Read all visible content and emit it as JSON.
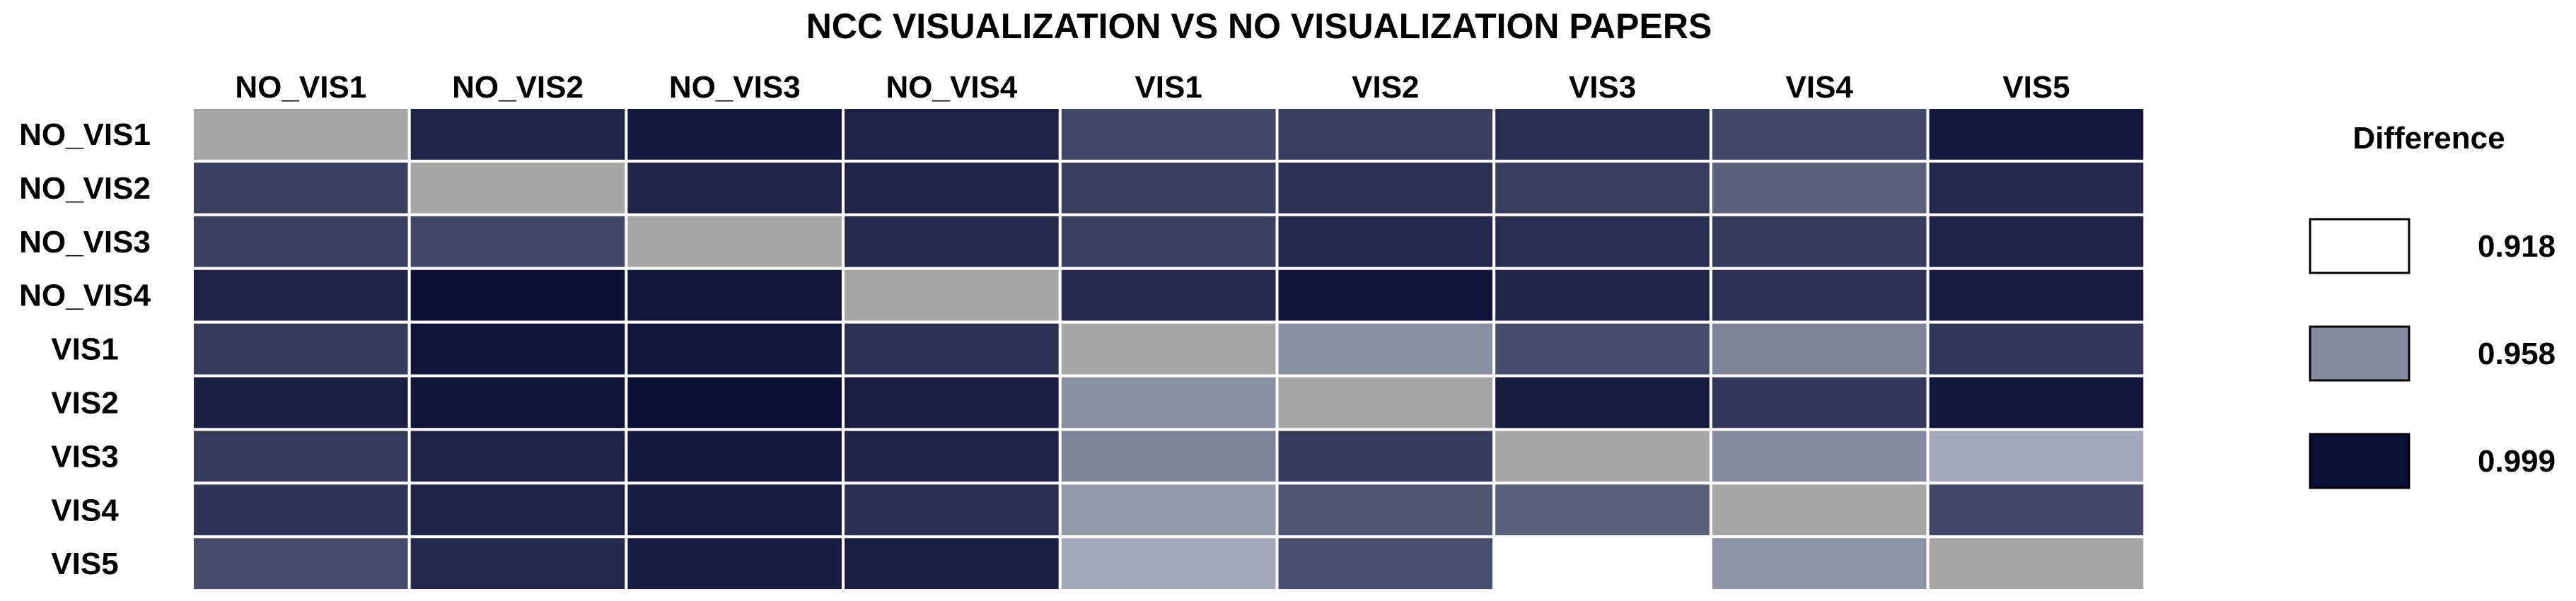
{
  "chart_data": {
    "type": "heatmap",
    "title": "NCC VISUALIZATION VS NO VISUALIZATION PAPERS",
    "columns": [
      "NO_VIS1",
      "NO_VIS2",
      "NO_VIS3",
      "NO_VIS4",
      "VIS1",
      "VIS2",
      "VIS3",
      "VIS4",
      "VIS5"
    ],
    "rows": [
      "NO_VIS1",
      "NO_VIS2",
      "NO_VIS3",
      "NO_VIS4",
      "VIS1",
      "VIS2",
      "VIS3",
      "VIS4",
      "VIS5"
    ],
    "values": [
      [
        null,
        0.992,
        0.996,
        0.993,
        0.981,
        0.984,
        0.989,
        0.981,
        0.996
      ],
      [
        0.983,
        null,
        0.992,
        0.992,
        0.984,
        0.988,
        0.984,
        0.972,
        0.991
      ],
      [
        0.983,
        0.981,
        null,
        0.99,
        0.983,
        0.991,
        0.989,
        0.985,
        0.993
      ],
      [
        0.993,
        0.999,
        0.997,
        null,
        0.99,
        0.998,
        0.992,
        0.988,
        0.995
      ],
      [
        0.985,
        0.998,
        0.997,
        0.988,
        null,
        0.957,
        0.979,
        0.961,
        0.986
      ],
      [
        0.994,
        0.998,
        0.999,
        0.994,
        0.957,
        null,
        0.995,
        0.986,
        0.997
      ],
      [
        0.985,
        0.993,
        0.996,
        0.993,
        0.961,
        0.985,
        null,
        0.958,
        0.948
      ],
      [
        0.987,
        0.993,
        0.995,
        0.989,
        0.953,
        0.976,
        0.973,
        null,
        0.981
      ],
      [
        0.979,
        0.991,
        0.995,
        0.994,
        0.948,
        0.978,
        0.918,
        0.955,
        null
      ]
    ],
    "diagonal_color": "#a6a6a6",
    "legend": {
      "title": "Difference",
      "placement": "right",
      "entries": [
        {
          "value": 0.918,
          "label": "0.918",
          "color": "#ffffff"
        },
        {
          "value": 0.958,
          "label": "0.958",
          "color": "#868ba1"
        },
        {
          "value": 0.999,
          "label": "0.999",
          "color": "#0b1137"
        }
      ]
    },
    "grid": true
  }
}
